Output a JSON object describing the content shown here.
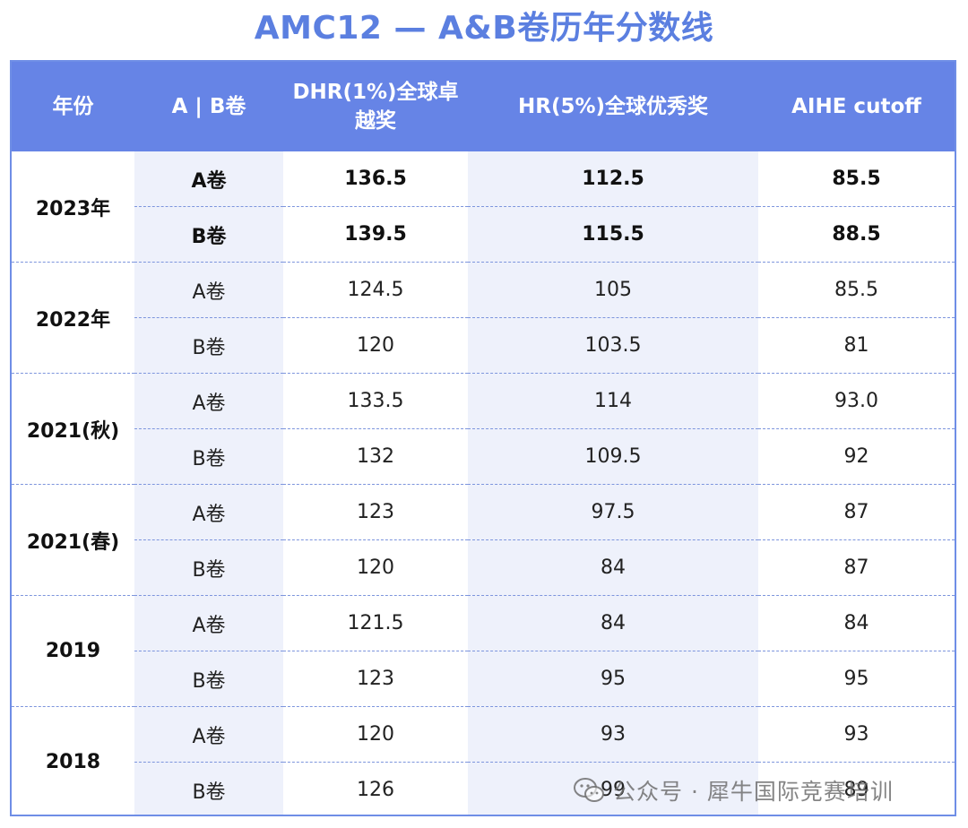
{
  "title": "AMC12 — A&B卷历年分数线",
  "headers": {
    "year": "年份",
    "paper": "A | B卷",
    "dhr": "DHR(1%)全球卓越奖",
    "hr": "HR(5%)全球优秀奖",
    "aihe": "AIHE cutoff"
  },
  "years": [
    {
      "label": "2023年",
      "rows": [
        {
          "paper": "A卷",
          "dhr": "136.5",
          "hr": "112.5",
          "aihe": "85.5"
        },
        {
          "paper": "B卷",
          "dhr": "139.5",
          "hr": "115.5",
          "aihe": "88.5"
        }
      ]
    },
    {
      "label": "2022年",
      "rows": [
        {
          "paper": "A卷",
          "dhr": "124.5",
          "hr": "105",
          "aihe": "85.5"
        },
        {
          "paper": "B卷",
          "dhr": "120",
          "hr": "103.5",
          "aihe": "81"
        }
      ]
    },
    {
      "label": "2021(秋)",
      "rows": [
        {
          "paper": "A卷",
          "dhr": "133.5",
          "hr": "114",
          "aihe": "93.0"
        },
        {
          "paper": "B卷",
          "dhr": "132",
          "hr": "109.5",
          "aihe": "92"
        }
      ]
    },
    {
      "label": "2021(春)",
      "rows": [
        {
          "paper": "A卷",
          "dhr": "123",
          "hr": "97.5",
          "aihe": "87"
        },
        {
          "paper": "B卷",
          "dhr": "120",
          "hr": "84",
          "aihe": "87"
        }
      ]
    },
    {
      "label": "2019",
      "rows": [
        {
          "paper": "A卷",
          "dhr": "121.5",
          "hr": "84",
          "aihe": "84"
        },
        {
          "paper": "B卷",
          "dhr": "123",
          "hr": "95",
          "aihe": "95"
        }
      ]
    },
    {
      "label": "2018",
      "rows": [
        {
          "paper": "A卷",
          "dhr": "120",
          "hr": "93",
          "aihe": "93"
        },
        {
          "paper": "B卷",
          "dhr": "126",
          "hr": "99",
          "aihe": "89"
        }
      ]
    }
  ],
  "watermark": {
    "text": "公众号 · 犀牛国际竞赛培训",
    "icon": "wechat-icon"
  },
  "colors": {
    "accent": "#5b7fe0",
    "header_bg": "#6684e6",
    "row_shade": "#eef1fb"
  }
}
